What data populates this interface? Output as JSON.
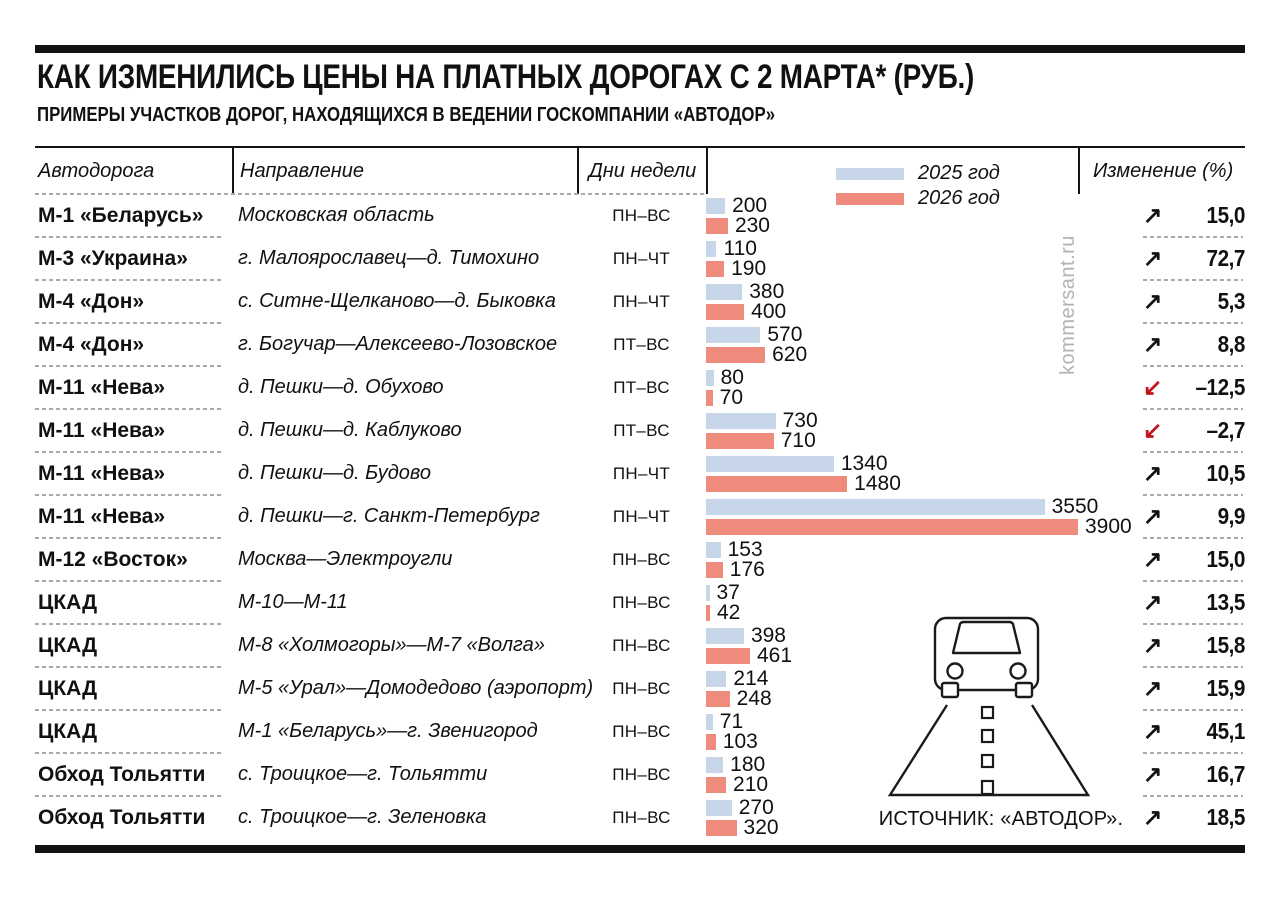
{
  "title": "КАК ИЗМЕНИЛИСЬ ЦЕНЫ НА ПЛАТНЫХ ДОРОГАХ С 2 МАРТА* (РУБ.)",
  "subtitle": "ПРИМЕРЫ УЧАСТКОВ ДОРОГ, НАХОДЯЩИХСЯ В ВЕДЕНИИ ГОСКОМПАНИИ «АВТОДОР»",
  "columns": {
    "road": "Автодорога",
    "direction": "Направление",
    "days": "Дни недели",
    "change": "Изменение (%)"
  },
  "legend": [
    {
      "label": "2025 год",
      "color": "#c7d6e9"
    },
    {
      "label": "2026 год",
      "color": "#ef8b7d"
    }
  ],
  "colors": {
    "bar_2025": "#c7d6e9",
    "bar_2026": "#ef8b7d",
    "arrow_up": "#111111",
    "arrow_down": "#c2161f"
  },
  "icons": {
    "up": "↗",
    "down": "↙"
  },
  "watermark": "kommersant.ru",
  "source": "ИСТОЧНИК: «АВТОДОР».",
  "chart_data": {
    "type": "bar",
    "orientation": "horizontal",
    "unit": "руб.",
    "series_names": [
      "2025 год",
      "2026 год"
    ],
    "max_value": 3900,
    "rows": [
      {
        "road": "М-1 «Беларусь»",
        "direction": "Московская область",
        "days": "ПН–ВС",
        "values": [
          200,
          230
        ],
        "change": "15,0",
        "trend": "up"
      },
      {
        "road": "М-3 «Украина»",
        "direction": "г. Малоярославец—д. Тимохино",
        "days": "ПН–ЧТ",
        "values": [
          110,
          190
        ],
        "change": "72,7",
        "trend": "up"
      },
      {
        "road": "М-4 «Дон»",
        "direction": "с. Ситне-Щелканово—д. Быковка",
        "days": "ПН–ЧТ",
        "values": [
          380,
          400
        ],
        "change": "5,3",
        "trend": "up"
      },
      {
        "road": "М-4 «Дон»",
        "direction": "г. Богучар—Алексеево-Лозовское",
        "days": "ПТ–ВС",
        "values": [
          570,
          620
        ],
        "change": "8,8",
        "trend": "up"
      },
      {
        "road": "М-11 «Нева»",
        "direction": "д. Пешки—д. Обухово",
        "days": "ПТ–ВС",
        "values": [
          80,
          70
        ],
        "change": "–12,5",
        "trend": "down"
      },
      {
        "road": "М-11 «Нева»",
        "direction": "д. Пешки—д. Каблуково",
        "days": "ПТ–ВС",
        "values": [
          730,
          710
        ],
        "change": "–2,7",
        "trend": "down"
      },
      {
        "road": "М-11 «Нева»",
        "direction": "д. Пешки—д. Будово",
        "days": "ПН–ЧТ",
        "values": [
          1340,
          1480
        ],
        "change": "10,5",
        "trend": "up"
      },
      {
        "road": "М-11 «Нева»",
        "direction": "д. Пешки—г. Санкт-Петербург",
        "days": "ПН–ЧТ",
        "values": [
          3550,
          3900
        ],
        "change": "9,9",
        "trend": "up"
      },
      {
        "road": "М-12 «Восток»",
        "direction": "Москва—Электроугли",
        "days": "ПН–ВС",
        "values": [
          153,
          176
        ],
        "change": "15,0",
        "trend": "up"
      },
      {
        "road": "ЦКАД",
        "direction": "М-10—М-11",
        "days": "ПН–ВС",
        "values": [
          37,
          42
        ],
        "change": "13,5",
        "trend": "up"
      },
      {
        "road": "ЦКАД",
        "direction": "М-8 «Холмогоры»—М-7 «Волга»",
        "days": "ПН–ВС",
        "values": [
          398,
          461
        ],
        "change": "15,8",
        "trend": "up"
      },
      {
        "road": "ЦКАД",
        "direction": "М-5 «Урал»—Домодедово (аэропорт)",
        "days": "ПН–ВС",
        "values": [
          214,
          248
        ],
        "change": "15,9",
        "trend": "up"
      },
      {
        "road": "ЦКАД",
        "direction": "М-1 «Беларусь»—г. Звенигород",
        "days": "ПН–ВС",
        "values": [
          71,
          103
        ],
        "change": "45,1",
        "trend": "up"
      },
      {
        "road": "Обход Тольятти",
        "direction": "с. Троицкое—г. Тольятти",
        "days": "ПН–ВС",
        "values": [
          180,
          210
        ],
        "change": "16,7",
        "trend": "up"
      },
      {
        "road": "Обход Тольятти",
        "direction": "с. Троицкое—г. Зеленовка",
        "days": "ПН–ВС",
        "values": [
          270,
          320
        ],
        "change": "18,5",
        "trend": "up"
      }
    ]
  }
}
